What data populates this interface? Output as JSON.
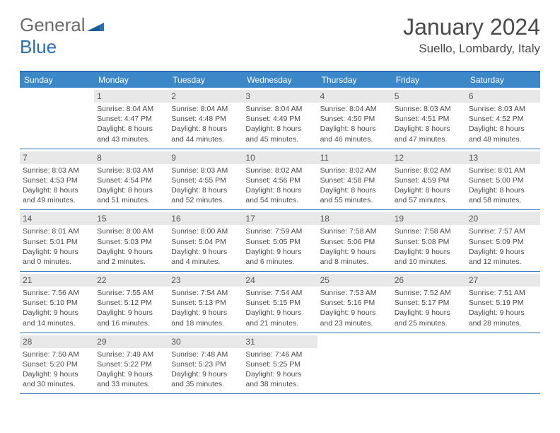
{
  "logo": {
    "text_gray": "General",
    "text_blue": "Blue"
  },
  "title": "January 2024",
  "location": "Suello, Lombardy, Italy",
  "colors": {
    "header_bar": "#3b87c8",
    "border": "#2a6eb8",
    "daynum_bg": "#e8e8e8",
    "text": "#4a4a4a"
  },
  "weekdays": [
    "Sunday",
    "Monday",
    "Tuesday",
    "Wednesday",
    "Thursday",
    "Friday",
    "Saturday"
  ],
  "weeks": [
    [
      {
        "day": "",
        "sunrise": "",
        "sunset": "",
        "daylight": ""
      },
      {
        "day": "1",
        "sunrise": "8:04 AM",
        "sunset": "4:47 PM",
        "daylight": "8 hours and 43 minutes."
      },
      {
        "day": "2",
        "sunrise": "8:04 AM",
        "sunset": "4:48 PM",
        "daylight": "8 hours and 44 minutes."
      },
      {
        "day": "3",
        "sunrise": "8:04 AM",
        "sunset": "4:49 PM",
        "daylight": "8 hours and 45 minutes."
      },
      {
        "day": "4",
        "sunrise": "8:04 AM",
        "sunset": "4:50 PM",
        "daylight": "8 hours and 46 minutes."
      },
      {
        "day": "5",
        "sunrise": "8:03 AM",
        "sunset": "4:51 PM",
        "daylight": "8 hours and 47 minutes."
      },
      {
        "day": "6",
        "sunrise": "8:03 AM",
        "sunset": "4:52 PM",
        "daylight": "8 hours and 48 minutes."
      }
    ],
    [
      {
        "day": "7",
        "sunrise": "8:03 AM",
        "sunset": "4:53 PM",
        "daylight": "8 hours and 49 minutes."
      },
      {
        "day": "8",
        "sunrise": "8:03 AM",
        "sunset": "4:54 PM",
        "daylight": "8 hours and 51 minutes."
      },
      {
        "day": "9",
        "sunrise": "8:03 AM",
        "sunset": "4:55 PM",
        "daylight": "8 hours and 52 minutes."
      },
      {
        "day": "10",
        "sunrise": "8:02 AM",
        "sunset": "4:56 PM",
        "daylight": "8 hours and 54 minutes."
      },
      {
        "day": "11",
        "sunrise": "8:02 AM",
        "sunset": "4:58 PM",
        "daylight": "8 hours and 55 minutes."
      },
      {
        "day": "12",
        "sunrise": "8:02 AM",
        "sunset": "4:59 PM",
        "daylight": "8 hours and 57 minutes."
      },
      {
        "day": "13",
        "sunrise": "8:01 AM",
        "sunset": "5:00 PM",
        "daylight": "8 hours and 58 minutes."
      }
    ],
    [
      {
        "day": "14",
        "sunrise": "8:01 AM",
        "sunset": "5:01 PM",
        "daylight": "9 hours and 0 minutes."
      },
      {
        "day": "15",
        "sunrise": "8:00 AM",
        "sunset": "5:03 PM",
        "daylight": "9 hours and 2 minutes."
      },
      {
        "day": "16",
        "sunrise": "8:00 AM",
        "sunset": "5:04 PM",
        "daylight": "9 hours and 4 minutes."
      },
      {
        "day": "17",
        "sunrise": "7:59 AM",
        "sunset": "5:05 PM",
        "daylight": "9 hours and 6 minutes."
      },
      {
        "day": "18",
        "sunrise": "7:58 AM",
        "sunset": "5:06 PM",
        "daylight": "9 hours and 8 minutes."
      },
      {
        "day": "19",
        "sunrise": "7:58 AM",
        "sunset": "5:08 PM",
        "daylight": "9 hours and 10 minutes."
      },
      {
        "day": "20",
        "sunrise": "7:57 AM",
        "sunset": "5:09 PM",
        "daylight": "9 hours and 12 minutes."
      }
    ],
    [
      {
        "day": "21",
        "sunrise": "7:56 AM",
        "sunset": "5:10 PM",
        "daylight": "9 hours and 14 minutes."
      },
      {
        "day": "22",
        "sunrise": "7:55 AM",
        "sunset": "5:12 PM",
        "daylight": "9 hours and 16 minutes."
      },
      {
        "day": "23",
        "sunrise": "7:54 AM",
        "sunset": "5:13 PM",
        "daylight": "9 hours and 18 minutes."
      },
      {
        "day": "24",
        "sunrise": "7:54 AM",
        "sunset": "5:15 PM",
        "daylight": "9 hours and 21 minutes."
      },
      {
        "day": "25",
        "sunrise": "7:53 AM",
        "sunset": "5:16 PM",
        "daylight": "9 hours and 23 minutes."
      },
      {
        "day": "26",
        "sunrise": "7:52 AM",
        "sunset": "5:17 PM",
        "daylight": "9 hours and 25 minutes."
      },
      {
        "day": "27",
        "sunrise": "7:51 AM",
        "sunset": "5:19 PM",
        "daylight": "9 hours and 28 minutes."
      }
    ],
    [
      {
        "day": "28",
        "sunrise": "7:50 AM",
        "sunset": "5:20 PM",
        "daylight": "9 hours and 30 minutes."
      },
      {
        "day": "29",
        "sunrise": "7:49 AM",
        "sunset": "5:22 PM",
        "daylight": "9 hours and 33 minutes."
      },
      {
        "day": "30",
        "sunrise": "7:48 AM",
        "sunset": "5:23 PM",
        "daylight": "9 hours and 35 minutes."
      },
      {
        "day": "31",
        "sunrise": "7:46 AM",
        "sunset": "5:25 PM",
        "daylight": "9 hours and 38 minutes."
      },
      {
        "day": "",
        "sunrise": "",
        "sunset": "",
        "daylight": ""
      },
      {
        "day": "",
        "sunrise": "",
        "sunset": "",
        "daylight": ""
      },
      {
        "day": "",
        "sunrise": "",
        "sunset": "",
        "daylight": ""
      }
    ]
  ],
  "labels": {
    "sunrise": "Sunrise:",
    "sunset": "Sunset:",
    "daylight": "Daylight:"
  }
}
